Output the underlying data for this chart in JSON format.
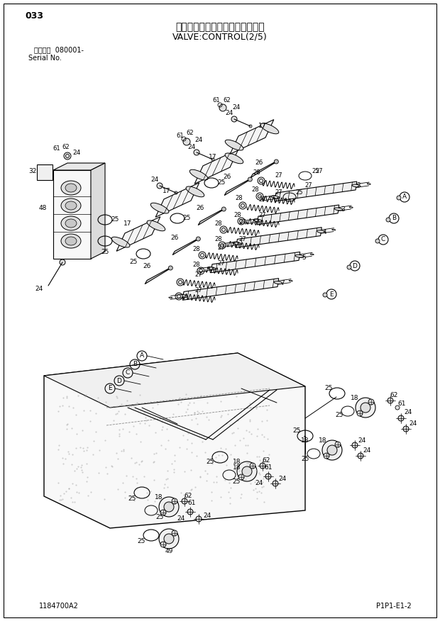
{
  "title_jp": "バルブ：コントロール（２／５）",
  "title_en": "VALVE:CONTROL(2/5)",
  "page_num": "033",
  "model_info": "適用号機  080001-",
  "serial_no": "Serial No.",
  "bottom_left": "1184700A2",
  "bottom_right": "P1P1-E1-2",
  "bg_color": "#ffffff",
  "lc": "#000000"
}
